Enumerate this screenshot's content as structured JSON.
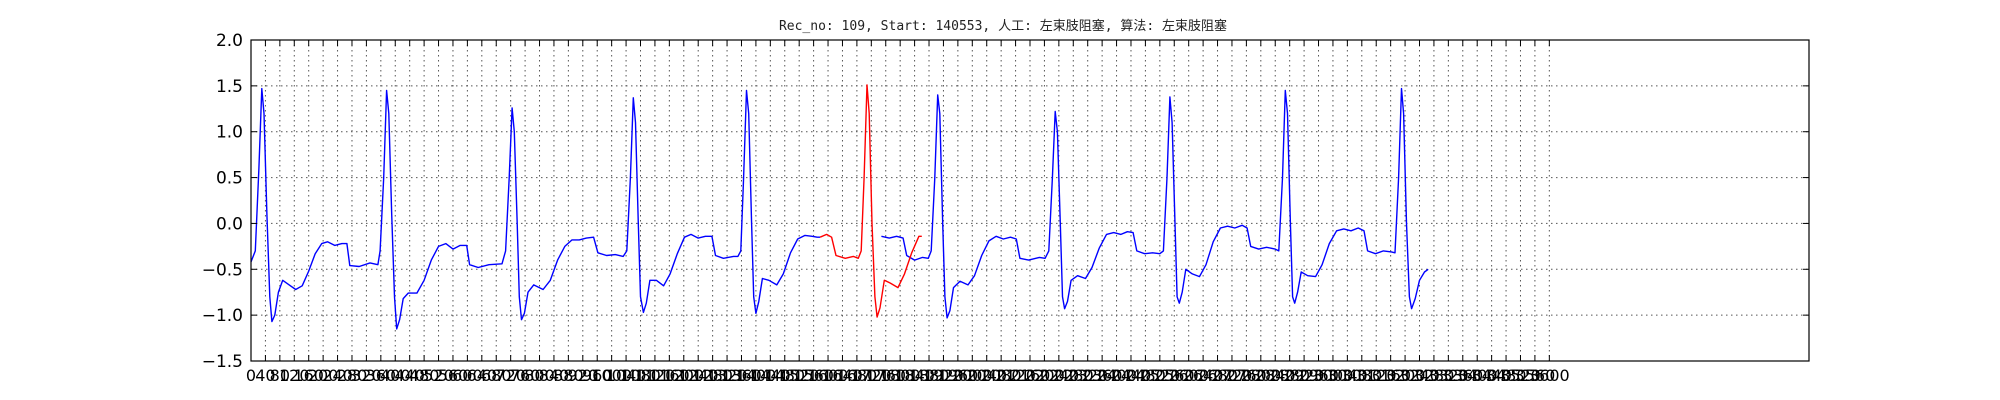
{
  "chart_data": {
    "type": "line",
    "title": "Rec_no: 109, Start: 140553, 人工: 左束肢阻塞, 算法: 左束肢阻塞",
    "xlabel": "",
    "ylabel": "",
    "xlim": [
      0,
      4320
    ],
    "ylim": [
      -1.5,
      2.0
    ],
    "grid": true,
    "yticks": [
      -1.5,
      -1.0,
      -0.5,
      0.0,
      0.5,
      1.0,
      1.5,
      2.0
    ],
    "ytick_labels": [
      "−1.5",
      "−1.0",
      "−0.5",
      "0.0",
      "0.5",
      "1.0",
      "1.5",
      "2.0"
    ],
    "xticks": [
      0,
      40,
      80,
      120,
      160,
      200,
      240,
      280,
      320,
      360,
      400,
      440,
      480,
      520,
      560,
      600,
      640,
      680,
      720,
      760,
      800,
      840,
      880,
      920,
      960,
      1000,
      1040,
      1080,
      1120,
      1160,
      1200,
      1240,
      1280,
      1320,
      1360,
      1400,
      1440,
      1480,
      1520,
      1560,
      1600,
      1640,
      1680,
      1720,
      1760,
      1800,
      1840,
      1880,
      1920,
      1960,
      2000,
      2040,
      2080,
      2120,
      2160,
      2200,
      2240,
      2280,
      2320,
      2360,
      2400,
      2440,
      2480,
      2520,
      2560,
      2600,
      2640,
      2680,
      2720,
      2760,
      2800,
      2840,
      2880,
      2920,
      2960,
      3000,
      3040,
      3080,
      3120,
      3160,
      3200,
      3240,
      3280,
      3320,
      3360,
      3400,
      3440,
      3480,
      3520,
      3560,
      3600
    ],
    "series": [
      {
        "color": "#0000ff",
        "segments": [
          [
            [
              0,
              -0.42
            ],
            [
              12,
              -0.3
            ],
            [
              22,
              0.6
            ],
            [
              30,
              1.47
            ],
            [
              36,
              1.2
            ],
            [
              44,
              0.1
            ],
            [
              52,
              -0.8
            ],
            [
              58,
              -1.07
            ],
            [
              66,
              -1.0
            ],
            [
              76,
              -0.75
            ],
            [
              88,
              -0.62
            ],
            [
              106,
              -0.67
            ],
            [
              124,
              -0.72
            ],
            [
              142,
              -0.68
            ],
            [
              160,
              -0.52
            ],
            [
              178,
              -0.33
            ],
            [
              196,
              -0.22
            ],
            [
              212,
              -0.2
            ],
            [
              232,
              -0.24
            ],
            [
              252,
              -0.22
            ],
            [
              266,
              -0.22
            ],
            [
              274,
              -0.46
            ],
            [
              300,
              -0.47
            ],
            [
              330,
              -0.43
            ],
            [
              352,
              -0.45
            ],
            [
              358,
              -0.3
            ],
            [
              368,
              0.5
            ],
            [
              376,
              1.45
            ],
            [
              382,
              1.2
            ],
            [
              390,
              0.1
            ],
            [
              398,
              -0.8
            ],
            [
              404,
              -1.15
            ],
            [
              412,
              -1.05
            ],
            [
              422,
              -0.82
            ],
            [
              436,
              -0.76
            ],
            [
              460,
              -0.76
            ],
            [
              480,
              -0.62
            ],
            [
              500,
              -0.4
            ],
            [
              520,
              -0.25
            ],
            [
              540,
              -0.22
            ],
            [
              560,
              -0.28
            ],
            [
              580,
              -0.24
            ],
            [
              598,
              -0.24
            ],
            [
              606,
              -0.45
            ],
            [
              630,
              -0.48
            ],
            [
              660,
              -0.45
            ],
            [
              696,
              -0.44
            ],
            [
              706,
              -0.3
            ],
            [
              716,
              0.5
            ],
            [
              724,
              1.26
            ],
            [
              730,
              1.0
            ],
            [
              738,
              0.0
            ],
            [
              744,
              -0.8
            ],
            [
              750,
              -1.05
            ],
            [
              758,
              -0.98
            ],
            [
              768,
              -0.75
            ],
            [
              784,
              -0.67
            ],
            [
              810,
              -0.72
            ],
            [
              830,
              -0.62
            ],
            [
              850,
              -0.4
            ],
            [
              870,
              -0.25
            ],
            [
              890,
              -0.18
            ],
            [
              910,
              -0.18
            ],
            [
              930,
              -0.16
            ],
            [
              950,
              -0.15
            ],
            [
              962,
              -0.32
            ],
            [
              986,
              -0.35
            ],
            [
              1010,
              -0.34
            ],
            [
              1032,
              -0.36
            ],
            [
              1042,
              -0.3
            ],
            [
              1052,
              0.5
            ],
            [
              1060,
              1.37
            ],
            [
              1066,
              1.1
            ],
            [
              1074,
              0.0
            ],
            [
              1080,
              -0.8
            ],
            [
              1088,
              -0.97
            ],
            [
              1096,
              -0.87
            ],
            [
              1106,
              -0.62
            ],
            [
              1124,
              -0.62
            ],
            [
              1144,
              -0.68
            ],
            [
              1162,
              -0.55
            ],
            [
              1182,
              -0.33
            ],
            [
              1202,
              -0.15
            ],
            [
              1220,
              -0.12
            ],
            [
              1240,
              -0.16
            ],
            [
              1260,
              -0.14
            ],
            [
              1278,
              -0.14
            ],
            [
              1288,
              -0.35
            ],
            [
              1310,
              -0.38
            ],
            [
              1338,
              -0.36
            ],
            [
              1350,
              -0.36
            ],
            [
              1358,
              -0.3
            ],
            [
              1366,
              0.5
            ],
            [
              1374,
              1.45
            ],
            [
              1380,
              1.2
            ],
            [
              1388,
              0.0
            ],
            [
              1394,
              -0.8
            ],
            [
              1400,
              -0.98
            ],
            [
              1408,
              -0.85
            ],
            [
              1418,
              -0.6
            ],
            [
              1436,
              -0.62
            ],
            [
              1458,
              -0.67
            ],
            [
              1476,
              -0.55
            ],
            [
              1496,
              -0.32
            ],
            [
              1516,
              -0.17
            ],
            [
              1536,
              -0.13
            ],
            [
              1556,
              -0.14
            ],
            [
              1570,
              -0.15
            ],
            [
              1578,
              -0.15
            ]
          ],
          [
            [
              1748,
              -0.14
            ],
            [
              1770,
              -0.16
            ],
            [
              1790,
              -0.14
            ],
            [
              1808,
              -0.16
            ],
            [
              1818,
              -0.35
            ],
            [
              1840,
              -0.4
            ],
            [
              1862,
              -0.37
            ],
            [
              1878,
              -0.38
            ],
            [
              1886,
              -0.3
            ],
            [
              1896,
              0.5
            ],
            [
              1904,
              1.4
            ],
            [
              1910,
              1.2
            ],
            [
              1918,
              0.0
            ],
            [
              1924,
              -0.8
            ],
            [
              1930,
              -1.03
            ],
            [
              1938,
              -0.95
            ],
            [
              1948,
              -0.7
            ],
            [
              1966,
              -0.63
            ],
            [
              1988,
              -0.67
            ],
            [
              2006,
              -0.57
            ],
            [
              2026,
              -0.35
            ],
            [
              2046,
              -0.19
            ],
            [
              2066,
              -0.14
            ],
            [
              2086,
              -0.17
            ],
            [
              2106,
              -0.15
            ],
            [
              2122,
              -0.17
            ],
            [
              2132,
              -0.38
            ],
            [
              2156,
              -0.4
            ],
            [
              2186,
              -0.37
            ],
            [
              2202,
              -0.38
            ],
            [
              2212,
              -0.3
            ],
            [
              2222,
              0.5
            ],
            [
              2230,
              1.22
            ],
            [
              2236,
              1.0
            ],
            [
              2244,
              0.0
            ],
            [
              2250,
              -0.8
            ],
            [
              2256,
              -0.93
            ],
            [
              2264,
              -0.85
            ],
            [
              2274,
              -0.62
            ],
            [
              2292,
              -0.57
            ],
            [
              2314,
              -0.6
            ],
            [
              2332,
              -0.48
            ],
            [
              2352,
              -0.27
            ],
            [
              2372,
              -0.12
            ],
            [
              2392,
              -0.1
            ],
            [
              2412,
              -0.12
            ],
            [
              2430,
              -0.09
            ],
            [
              2446,
              -0.1
            ],
            [
              2456,
              -0.3
            ],
            [
              2478,
              -0.33
            ],
            [
              2500,
              -0.32
            ],
            [
              2520,
              -0.33
            ],
            [
              2530,
              -0.3
            ],
            [
              2540,
              0.5
            ],
            [
              2548,
              1.38
            ],
            [
              2554,
              1.1
            ],
            [
              2562,
              0.0
            ],
            [
              2568,
              -0.8
            ],
            [
              2574,
              -0.87
            ],
            [
              2582,
              -0.75
            ],
            [
              2592,
              -0.5
            ],
            [
              2610,
              -0.55
            ],
            [
              2630,
              -0.58
            ],
            [
              2648,
              -0.45
            ],
            [
              2668,
              -0.2
            ],
            [
              2688,
              -0.05
            ],
            [
              2708,
              -0.03
            ],
            [
              2728,
              -0.05
            ],
            [
              2748,
              -0.02
            ],
            [
              2762,
              -0.05
            ],
            [
              2772,
              -0.25
            ],
            [
              2794,
              -0.28
            ],
            [
              2816,
              -0.26
            ],
            [
              2840,
              -0.28
            ],
            [
              2850,
              -0.3
            ],
            [
              2860,
              0.5
            ],
            [
              2868,
              1.45
            ],
            [
              2874,
              1.2
            ],
            [
              2882,
              0.0
            ],
            [
              2888,
              -0.8
            ],
            [
              2894,
              -0.87
            ],
            [
              2902,
              -0.75
            ],
            [
              2912,
              -0.53
            ],
            [
              2930,
              -0.57
            ],
            [
              2952,
              -0.58
            ],
            [
              2970,
              -0.45
            ],
            [
              2990,
              -0.22
            ],
            [
              3010,
              -0.08
            ],
            [
              3030,
              -0.06
            ],
            [
              3050,
              -0.08
            ],
            [
              3070,
              -0.05
            ],
            [
              3086,
              -0.08
            ],
            [
              3096,
              -0.3
            ],
            [
              3118,
              -0.33
            ],
            [
              3140,
              -0.3
            ],
            [
              3162,
              -0.31
            ],
            [
              3172,
              -0.32
            ],
            [
              3182,
              0.5
            ],
            [
              3190,
              1.47
            ],
            [
              3196,
              1.2
            ],
            [
              3204,
              0.0
            ],
            [
              3212,
              -0.8
            ],
            [
              3218,
              -0.93
            ],
            [
              3228,
              -0.82
            ],
            [
              3240,
              -0.62
            ],
            [
              3254,
              -0.53
            ],
            [
              3264,
              -0.5
            ]
          ]
        ]
      },
      {
        "color": "#ff0000",
        "segments": [
          [
            [
              1578,
              -0.15
            ],
            [
              1596,
              -0.12
            ],
            [
              1610,
              -0.15
            ],
            [
              1622,
              -0.35
            ],
            [
              1648,
              -0.38
            ],
            [
              1670,
              -0.36
            ],
            [
              1684,
              -0.38
            ],
            [
              1692,
              -0.3
            ],
            [
              1700,
              0.5
            ],
            [
              1708,
              1.51
            ],
            [
              1714,
              1.2
            ],
            [
              1722,
              0.0
            ],
            [
              1730,
              -0.8
            ],
            [
              1736,
              -1.02
            ],
            [
              1744,
              -0.92
            ],
            [
              1756,
              -0.62
            ],
            [
              1772,
              -0.65
            ],
            [
              1794,
              -0.7
            ],
            [
              1812,
              -0.55
            ],
            [
              1832,
              -0.32
            ],
            [
              1852,
              -0.14
            ],
            [
              1860,
              -0.14
            ]
          ]
        ]
      }
    ]
  }
}
